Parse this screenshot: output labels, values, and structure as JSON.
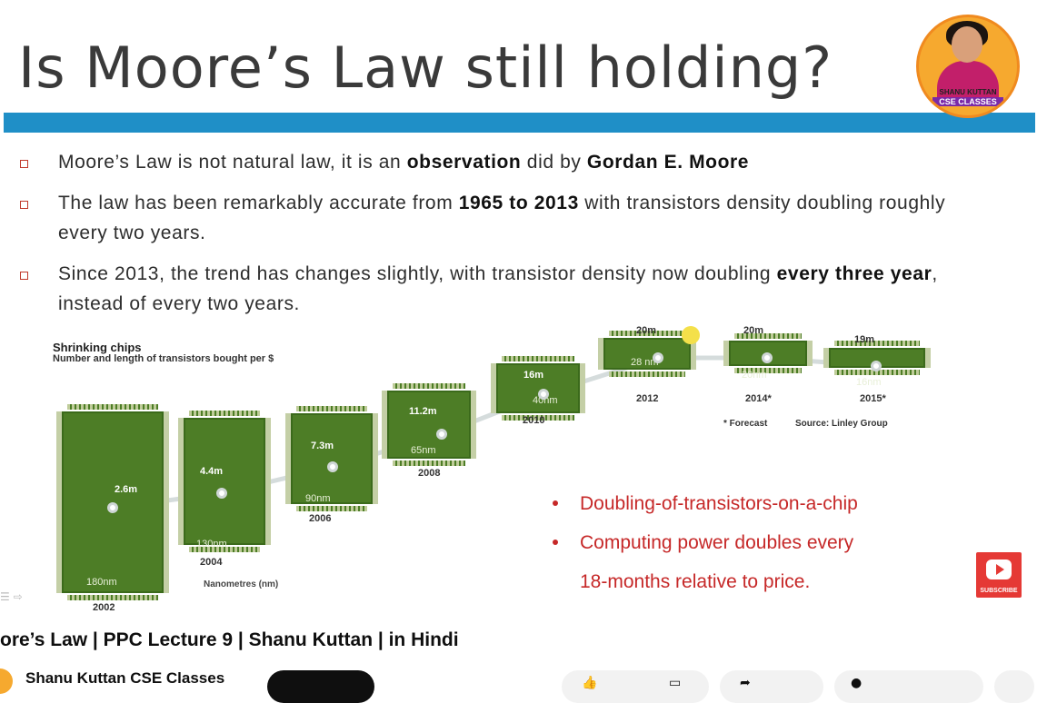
{
  "slide": {
    "title": "Is Moore’s Law still holding?",
    "bullets": [
      {
        "parts": [
          {
            "t": "Moore’s Law is not natural law, it is an ",
            "b": false
          },
          {
            "t": "observation",
            "b": true
          },
          {
            "t": " did by ",
            "b": false
          },
          {
            "t": "Gordan E. Moore",
            "b": true
          }
        ]
      },
      {
        "parts": [
          {
            "t": "The law has been remarkably accurate from ",
            "b": false
          },
          {
            "t": "1965 to 2013",
            "b": true
          },
          {
            "t": " with transistors density doubling roughly every two years.",
            "b": false
          }
        ]
      },
      {
        "parts": [
          {
            "t": "Since 2013, the trend has changes slightly, with transistor density now doubling ",
            "b": false
          },
          {
            "t": "every three year",
            "b": true
          },
          {
            "t": ", instead of every two years.",
            "b": false
          }
        ]
      }
    ],
    "infographic": {
      "title": "Shrinking chips",
      "subtitle": "Number and length of transistors bought per $",
      "chips": [
        {
          "count": "2.6m",
          "nm": "180nm",
          "year": "2002"
        },
        {
          "count": "4.4m",
          "nm": "130nm",
          "year": "2004"
        },
        {
          "count": "7.3m",
          "nm": "90nm",
          "year": "2006"
        },
        {
          "count": "11.2m",
          "nm": "65nm",
          "year": "2008"
        },
        {
          "count": "16m",
          "nm": "40nm",
          "year": "2010"
        },
        {
          "count": "20m",
          "nm": "28 nm",
          "year": "2012"
        },
        {
          "count": "20m",
          "nm": "20nm",
          "year": "2014*"
        },
        {
          "count": "19m",
          "nm": "16nm",
          "year": "2015*"
        }
      ],
      "nanometres_label": "Nanometres (nm)",
      "forecast_note": "* Forecast",
      "source_note": "Source: Linley Group"
    },
    "red_points": [
      "Doubling-of-transistors-on-a-chip",
      "Computing power doubles every",
      "18-months relative to price."
    ],
    "logo": {
      "line1": "SHANU KUTTAN",
      "line2": "CSE CLASSES"
    },
    "subscribe_badge": "SUBSCRIBE"
  },
  "video": {
    "title": "ore’s Law | PPC Lecture 9 | Shanu Kuttan | in Hindi",
    "channel_name": "Shanu Kuttan CSE Classes"
  },
  "colors": {
    "accent_bar": "#1f8fc7",
    "bullet_red": "#c62828",
    "chip_green": "#4d7d26"
  }
}
